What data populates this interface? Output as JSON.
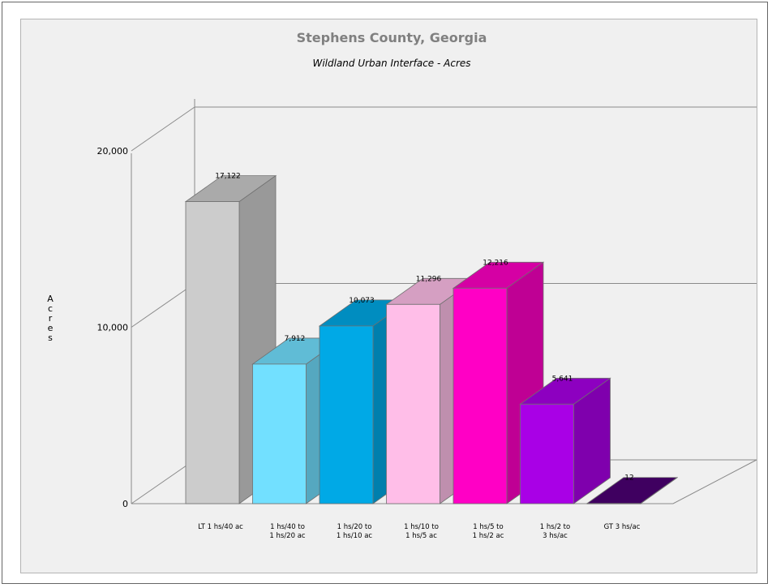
{
  "chart_data": {
    "type": "bar",
    "title": "Stephens County, Georgia",
    "subtitle": "Wildland Urban Interface - Acres",
    "ylabel": "Acres",
    "xlabel": "",
    "ylim": [
      0,
      20000
    ],
    "yticks": [
      "0",
      "10,000",
      "20,000"
    ],
    "ytick_values": [
      0,
      10000,
      20000
    ],
    "grid": true,
    "style": "3d",
    "categories": [
      [
        "LT 1 hs/40 ac"
      ],
      [
        "1 hs/40 to",
        "1 hs/20 ac"
      ],
      [
        "1 hs/20 to",
        "1 hs/10 ac"
      ],
      [
        "1 hs/10 to",
        "1 hs/5 ac"
      ],
      [
        "1 hs/5 to",
        "1 hs/2 ac"
      ],
      [
        "1 hs/2 to",
        "3 hs/ac"
      ],
      [
        "GT 3 hs/ac"
      ]
    ],
    "values": [
      17122,
      7912,
      10073,
      11296,
      12216,
      5641,
      12
    ],
    "data_labels": [
      "17,122",
      "7,912",
      "10,073",
      "11,296",
      "12,216",
      "5,641",
      "12"
    ],
    "colors": [
      {
        "front": "#cccccc",
        "side": "#999999",
        "top": "#aaaaaa"
      },
      {
        "front": "#72e0ff",
        "side": "#55a8c0",
        "top": "#60bcd6"
      },
      {
        "front": "#00a9e6",
        "side": "#007fad",
        "top": "#008dc0"
      },
      {
        "front": "#ffbee8",
        "side": "#bf8fae",
        "top": "#d59fc2"
      },
      {
        "front": "#ff00c5",
        "side": "#bf0094",
        "top": "#d500a4"
      },
      {
        "front": "#a900e6",
        "side": "#7f00ad",
        "top": "#8d00c0"
      },
      {
        "front": "#4c0073",
        "side": "#390056",
        "top": "#3f0060"
      }
    ]
  }
}
